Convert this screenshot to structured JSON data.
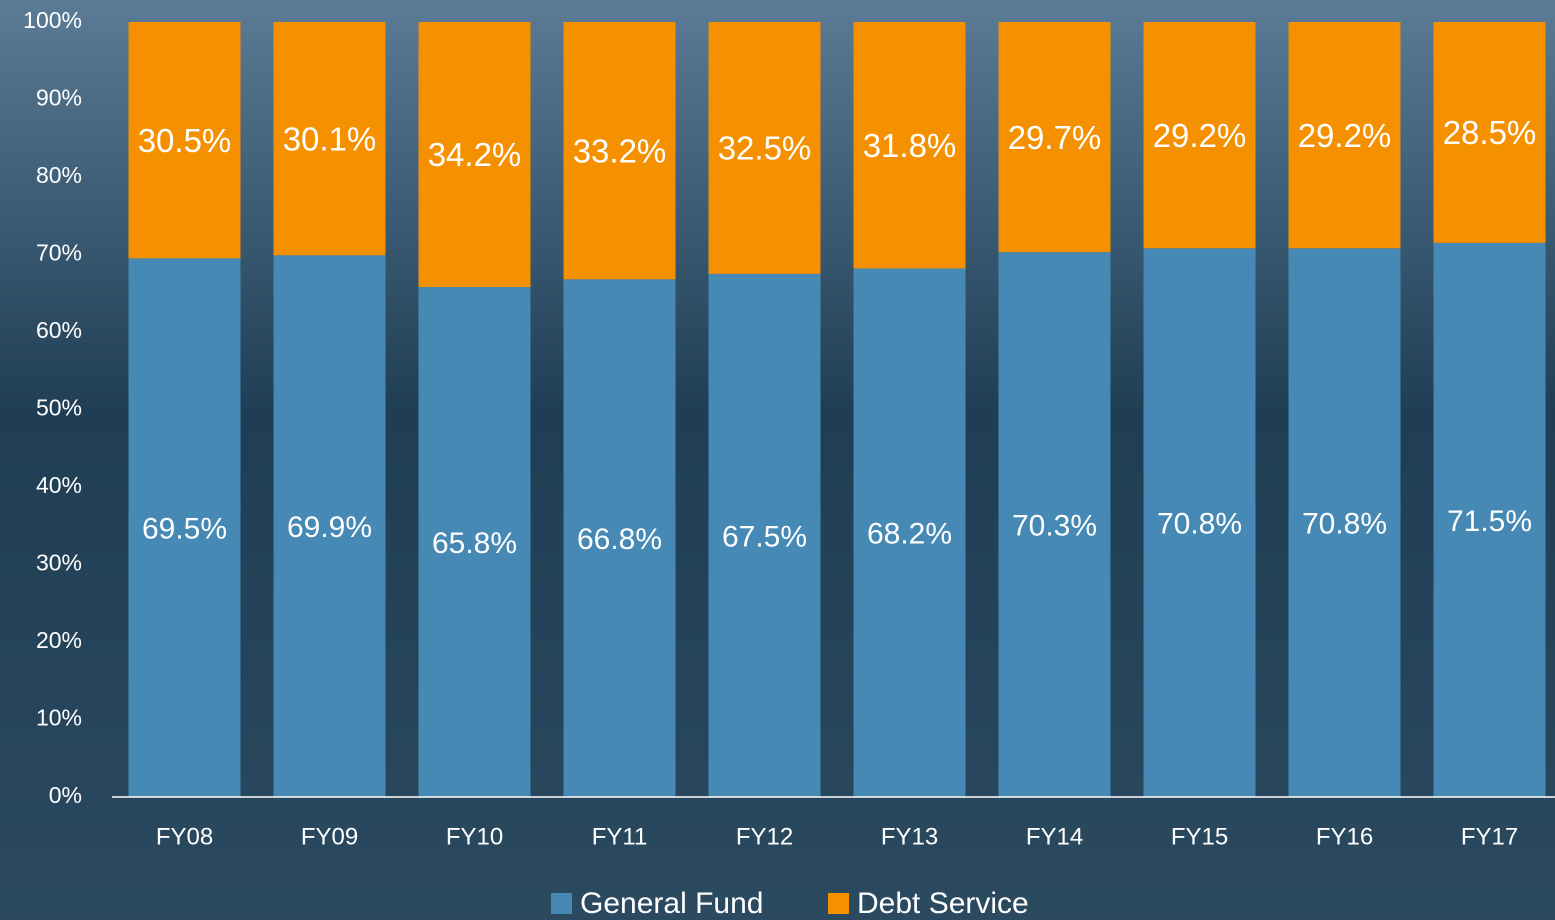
{
  "chart_data": {
    "type": "stacked_bar",
    "categories": [
      "FY08",
      "FY09",
      "FY10",
      "FY11",
      "FY12",
      "FY13",
      "FY14",
      "FY15",
      "FY16",
      "FY17"
    ],
    "series": [
      {
        "name": "General Fund",
        "color": "#4589b4",
        "values": [
          69.5,
          69.9,
          65.8,
          66.8,
          67.5,
          68.2,
          70.3,
          70.8,
          70.8,
          71.5
        ],
        "value_labels": [
          "69.5%",
          "69.9%",
          "65.8%",
          "66.8%",
          "67.5%",
          "68.2%",
          "70.3%",
          "70.8%",
          "70.8%",
          "71.5%"
        ]
      },
      {
        "name": "Debt Service",
        "color": "#f59100",
        "values": [
          30.5,
          30.1,
          34.2,
          33.2,
          32.5,
          31.8,
          29.7,
          29.2,
          29.2,
          28.5
        ],
        "value_labels": [
          "30.5%",
          "30.1%",
          "34.2%",
          "33.2%",
          "32.5%",
          "31.8%",
          "29.7%",
          "29.2%",
          "29.2%",
          "28.5%"
        ]
      }
    ],
    "ylim": [
      0,
      100
    ],
    "yticks": [
      {
        "value": 0,
        "label": "0%"
      },
      {
        "value": 10,
        "label": "10%"
      },
      {
        "value": 20,
        "label": "20%"
      },
      {
        "value": 30,
        "label": "30%"
      },
      {
        "value": 40,
        "label": "40%"
      },
      {
        "value": 50,
        "label": "50%"
      },
      {
        "value": 60,
        "label": "60%"
      },
      {
        "value": 70,
        "label": "70%"
      },
      {
        "value": 80,
        "label": "80%"
      },
      {
        "value": 90,
        "label": "90%"
      },
      {
        "value": 100,
        "label": "100%"
      }
    ],
    "legend": "bottom"
  }
}
